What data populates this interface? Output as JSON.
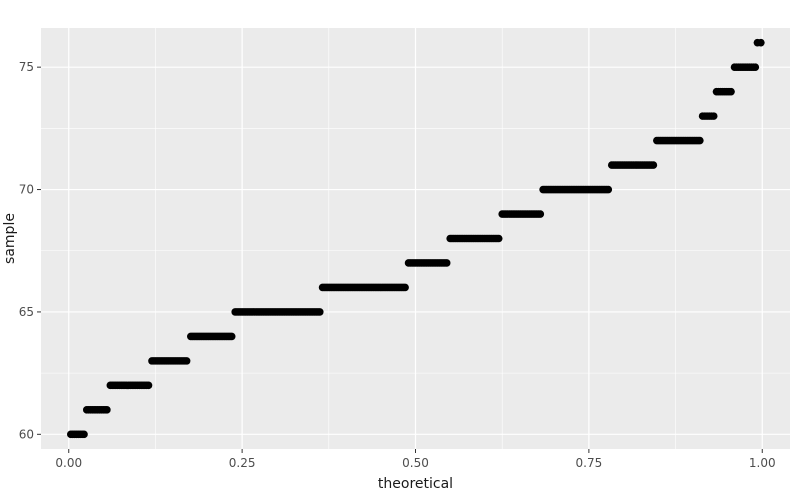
{
  "chart_data": {
    "type": "scatter",
    "title": "",
    "xlabel": "theoretical",
    "ylabel": "sample",
    "xlim": [
      -0.04,
      1.04
    ],
    "ylim": [
      59.4,
      76.6
    ],
    "x_ticks": [
      "0.00",
      "0.25",
      "0.50",
      "0.75",
      "1.00"
    ],
    "x_tick_values": [
      0.0,
      0.25,
      0.5,
      0.75,
      1.0
    ],
    "y_ticks": [
      "60",
      "65",
      "70",
      "75"
    ],
    "y_tick_values": [
      60,
      65,
      70,
      75
    ],
    "grid": true,
    "point_color": "#000000",
    "panel_color": "#ebebeb",
    "grid_color": "#ffffff",
    "segments": [
      {
        "y": 60,
        "x_start": 0.003,
        "x_end": 0.022
      },
      {
        "y": 61,
        "x_start": 0.026,
        "x_end": 0.055
      },
      {
        "y": 62,
        "x_start": 0.06,
        "x_end": 0.115
      },
      {
        "y": 63,
        "x_start": 0.12,
        "x_end": 0.17
      },
      {
        "y": 64,
        "x_start": 0.176,
        "x_end": 0.235
      },
      {
        "y": 65,
        "x_start": 0.24,
        "x_end": 0.362
      },
      {
        "y": 66,
        "x_start": 0.366,
        "x_end": 0.485
      },
      {
        "y": 67,
        "x_start": 0.49,
        "x_end": 0.545
      },
      {
        "y": 68,
        "x_start": 0.55,
        "x_end": 0.62
      },
      {
        "y": 69,
        "x_start": 0.625,
        "x_end": 0.68
      },
      {
        "y": 70,
        "x_start": 0.684,
        "x_end": 0.778
      },
      {
        "y": 71,
        "x_start": 0.783,
        "x_end": 0.843
      },
      {
        "y": 72,
        "x_start": 0.848,
        "x_end": 0.91
      },
      {
        "y": 73,
        "x_start": 0.914,
        "x_end": 0.93
      },
      {
        "y": 74,
        "x_start": 0.934,
        "x_end": 0.955
      },
      {
        "y": 75,
        "x_start": 0.96,
        "x_end": 0.99
      },
      {
        "y": 76,
        "x_start": 0.993,
        "x_end": 0.998
      }
    ]
  }
}
